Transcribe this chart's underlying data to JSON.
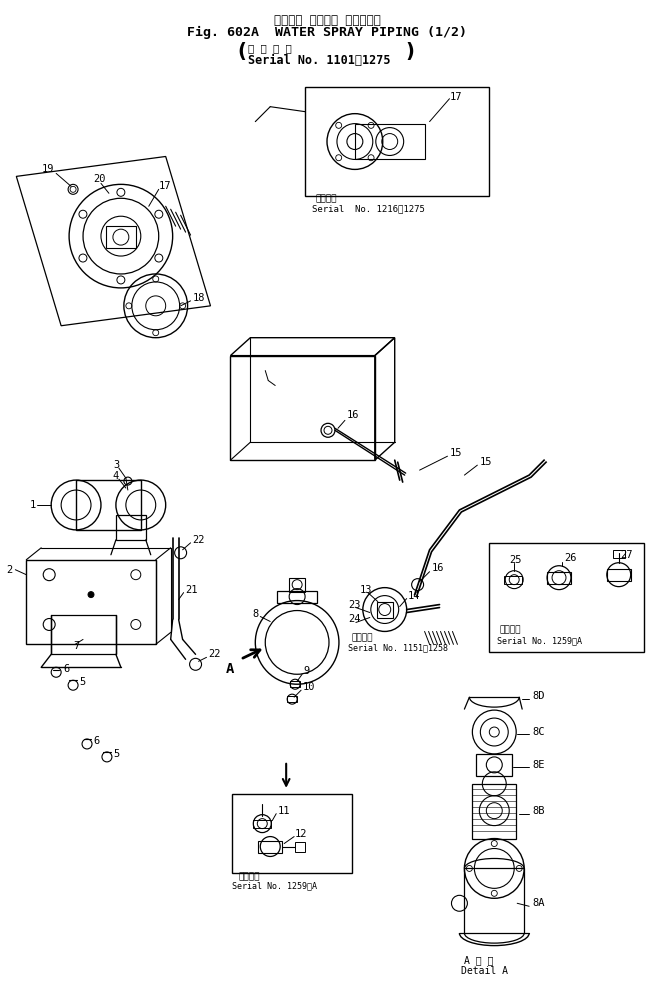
{
  "title_jp": "ウォータ スプレイ パイピング",
  "title_en": "Fig. 602A  WATER SPRAY PIPING (1/2)",
  "subtitle_jp": "適 用 号 機",
  "subtitle_en": "Serial No. 1101～1275",
  "bg_color": "#ffffff",
  "fig_width": 6.54,
  "fig_height": 10.02
}
